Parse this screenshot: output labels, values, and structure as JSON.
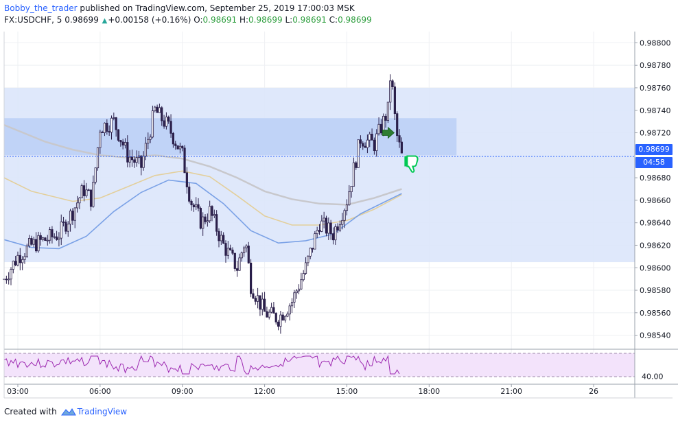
{
  "header": {
    "author": "Bobby_the_trader",
    "published": "published on TradingView.com, September 25, 2019 17:00:03 MSK",
    "symbol": "FX:USDCHF, 5",
    "last": "0.98699",
    "change": "+0.00158 (+0.16%)",
    "o_label": "O:",
    "o_value": "0.98691",
    "h_label": "H:",
    "h_value": "0.98699",
    "l_label": "L:",
    "l_value": "0.98691",
    "c_label": "C:",
    "c_value": "0.98699"
  },
  "price_axis": {
    "labels": [
      "0.98800",
      "0.98780",
      "0.98760",
      "0.98740",
      "0.98720",
      "0.98680",
      "0.98660",
      "0.98640",
      "0.98620",
      "0.98600",
      "0.98580",
      "0.98560",
      "0.98540"
    ],
    "current_price": "0.98699",
    "countdown": "04:58"
  },
  "time_axis": {
    "labels": [
      "03:00",
      "06:00",
      "09:00",
      "12:00",
      "15:00",
      "18:00",
      "21:00",
      "26"
    ]
  },
  "rsi_panel": {
    "level_label": "40.00"
  },
  "footer": {
    "created_with": "Created with",
    "brand": "TradingView"
  },
  "colors": {
    "up": "#26a69a",
    "accent": "#2962ff",
    "zone_outer": "#dbe6fb",
    "zone_inner": "#bcd0f6",
    "ma_grey": "#c8c8cc",
    "ma_tan": "#e3cf9b",
    "ma_blue": "#7aa1e6",
    "rsi": "#9c27b0",
    "rsi_bg": "#f3e3fb",
    "candle_body": "#2a1f4a"
  },
  "chart_data": {
    "type": "candlestick",
    "ylim": [
      0.9853,
      0.9881
    ],
    "x_range_hours": [
      2.5,
      25.5
    ],
    "zones": [
      {
        "low": 0.98605,
        "high": 0.9876
      },
      {
        "low": 0.987,
        "high": 0.98733
      }
    ],
    "ma_series": [
      {
        "points": [
          [
            2.5,
            0.98727
          ],
          [
            4.0,
            0.98712
          ],
          [
            5.0,
            0.98705
          ],
          [
            6.0,
            0.987
          ],
          [
            7.0,
            0.98698
          ],
          [
            8.0,
            0.987
          ],
          [
            9.0,
            0.98697
          ],
          [
            10.0,
            0.9869
          ],
          [
            11.0,
            0.9868
          ],
          [
            12.0,
            0.98668
          ],
          [
            13.0,
            0.98661
          ],
          [
            14.0,
            0.98657
          ],
          [
            15.0,
            0.98656
          ],
          [
            16.0,
            0.98662
          ],
          [
            17.0,
            0.9867
          ]
        ]
      },
      {
        "points": [
          [
            2.5,
            0.9868
          ],
          [
            3.5,
            0.98668
          ],
          [
            5.0,
            0.98659
          ],
          [
            6.0,
            0.98662
          ],
          [
            7.0,
            0.98672
          ],
          [
            8.0,
            0.98682
          ],
          [
            9.0,
            0.98686
          ],
          [
            10.0,
            0.98681
          ],
          [
            11.0,
            0.98664
          ],
          [
            12.0,
            0.98646
          ],
          [
            13.0,
            0.98638
          ],
          [
            14.0,
            0.98638
          ],
          [
            15.0,
            0.98642
          ],
          [
            16.0,
            0.98652
          ],
          [
            17.0,
            0.98665
          ]
        ]
      },
      {
        "points": [
          [
            2.5,
            0.98625
          ],
          [
            3.5,
            0.98618
          ],
          [
            4.5,
            0.98617
          ],
          [
            5.5,
            0.98628
          ],
          [
            6.5,
            0.9865
          ],
          [
            7.5,
            0.98667
          ],
          [
            8.5,
            0.98678
          ],
          [
            9.5,
            0.98675
          ],
          [
            10.5,
            0.98657
          ],
          [
            11.5,
            0.98633
          ],
          [
            12.5,
            0.98622
          ],
          [
            13.5,
            0.98624
          ],
          [
            14.5,
            0.9863
          ],
          [
            15.5,
            0.98648
          ],
          [
            16.5,
            0.9866
          ],
          [
            17.0,
            0.98666
          ]
        ]
      }
    ],
    "close_path": [
      [
        2.5,
        0.9859
      ],
      [
        3.0,
        0.9861
      ],
      [
        3.5,
        0.9862
      ],
      [
        4.0,
        0.98625
      ],
      [
        4.5,
        0.9863
      ],
      [
        5.0,
        0.9865
      ],
      [
        5.4,
        0.9867
      ],
      [
        5.7,
        0.9866
      ],
      [
        6.0,
        0.98725
      ],
      [
        6.5,
        0.9873
      ],
      [
        7.0,
        0.987
      ],
      [
        7.5,
        0.9869
      ],
      [
        8.0,
        0.9874
      ],
      [
        8.5,
        0.98725
      ],
      [
        9.0,
        0.987
      ],
      [
        9.3,
        0.9866
      ],
      [
        9.7,
        0.9864
      ],
      [
        10.0,
        0.9865
      ],
      [
        10.5,
        0.9862
      ],
      [
        11.0,
        0.986
      ],
      [
        11.3,
        0.98625
      ],
      [
        11.5,
        0.98585
      ],
      [
        12.0,
        0.9856
      ],
      [
        12.5,
        0.98555
      ],
      [
        13.0,
        0.9857
      ],
      [
        13.5,
        0.986
      ],
      [
        14.0,
        0.9864
      ],
      [
        14.5,
        0.9863
      ],
      [
        15.0,
        0.9866
      ],
      [
        15.5,
        0.98715
      ],
      [
        16.0,
        0.9871
      ],
      [
        16.5,
        0.9874
      ],
      [
        16.6,
        0.98775
      ],
      [
        16.8,
        0.9872
      ],
      [
        17.0,
        0.98699
      ]
    ],
    "annotations": [
      {
        "type": "arrow-right",
        "x": 16.5,
        "y": 0.9872,
        "color": "#2e7d32"
      },
      {
        "type": "thumb-down",
        "x": 17.2,
        "y": 0.98695,
        "color": "#00c853"
      }
    ]
  }
}
